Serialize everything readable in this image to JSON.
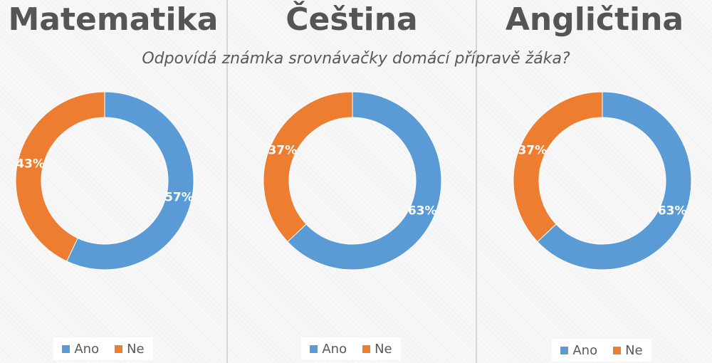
{
  "subtitle": "Odpovídá známka srovnávačky domácí přípravě žáka?",
  "colors": {
    "ano": "#5b9bd5",
    "ne": "#ed7d31"
  },
  "chart_data": [
    {
      "type": "pie",
      "subtitle": "Matematika",
      "categories": [
        "Ano",
        "Ne"
      ],
      "values": [
        57,
        43
      ],
      "labels": [
        "57%",
        "43%"
      ],
      "legend": "bottom"
    },
    {
      "type": "pie",
      "subtitle": "Čeština",
      "categories": [
        "Ano",
        "Ne"
      ],
      "values": [
        63,
        37
      ],
      "labels": [
        "63%",
        "37%"
      ],
      "legend": "bottom"
    },
    {
      "type": "pie",
      "subtitle": "Angličtina",
      "categories": [
        "Ano",
        "Ne"
      ],
      "values": [
        63,
        37
      ],
      "labels": [
        "63%",
        "37%"
      ],
      "legend": "bottom"
    }
  ]
}
